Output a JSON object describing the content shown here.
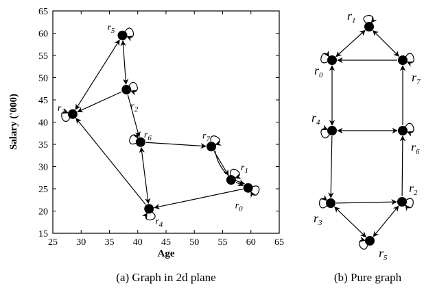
{
  "panel_a": {
    "caption": "(a) Graph in 2d plane",
    "xlabel": "Age",
    "ylabel": "Salary ('000)",
    "x_ticks": [
      "25",
      "30",
      "35",
      "40",
      "45",
      "50",
      "55",
      "60",
      "65"
    ],
    "y_ticks": [
      "15",
      "20",
      "25",
      "30",
      "35",
      "40",
      "45",
      "50",
      "55",
      "60",
      "65"
    ],
    "xlim": [
      25,
      65
    ],
    "ylim": [
      15,
      65
    ],
    "nodes": [
      {
        "id": "r0",
        "base": "r",
        "sub": "0",
        "age": 59.5,
        "salary": 25.2
      },
      {
        "id": "r1",
        "base": "r",
        "sub": "1",
        "age": 56.5,
        "salary": 27.0
      },
      {
        "id": "r2",
        "base": "r",
        "sub": "2",
        "age": 38.0,
        "salary": 47.3
      },
      {
        "id": "r3",
        "base": "r",
        "sub": "3",
        "age": 28.5,
        "salary": 41.8
      },
      {
        "id": "r4",
        "base": "r",
        "sub": "4",
        "age": 42.0,
        "salary": 20.5
      },
      {
        "id": "r5",
        "base": "r",
        "sub": "5",
        "age": 37.3,
        "salary": 59.5
      },
      {
        "id": "r6",
        "base": "r",
        "sub": "6",
        "age": 40.5,
        "salary": 35.5
      },
      {
        "id": "r7",
        "base": "r",
        "sub": "7",
        "age": 53.0,
        "salary": 34.5
      }
    ]
  },
  "panel_b": {
    "caption": "(b) Pure graph",
    "nodes": [
      {
        "id": "r1",
        "base": "r",
        "sub": "1"
      },
      {
        "id": "r0",
        "base": "r",
        "sub": "0"
      },
      {
        "id": "r7",
        "base": "r",
        "sub": "7"
      },
      {
        "id": "r4",
        "base": "r",
        "sub": "4"
      },
      {
        "id": "r6",
        "base": "r",
        "sub": "6"
      },
      {
        "id": "r3",
        "base": "r",
        "sub": "3"
      },
      {
        "id": "r2",
        "base": "r",
        "sub": "2"
      },
      {
        "id": "r5",
        "base": "r",
        "sub": "5"
      }
    ]
  }
}
